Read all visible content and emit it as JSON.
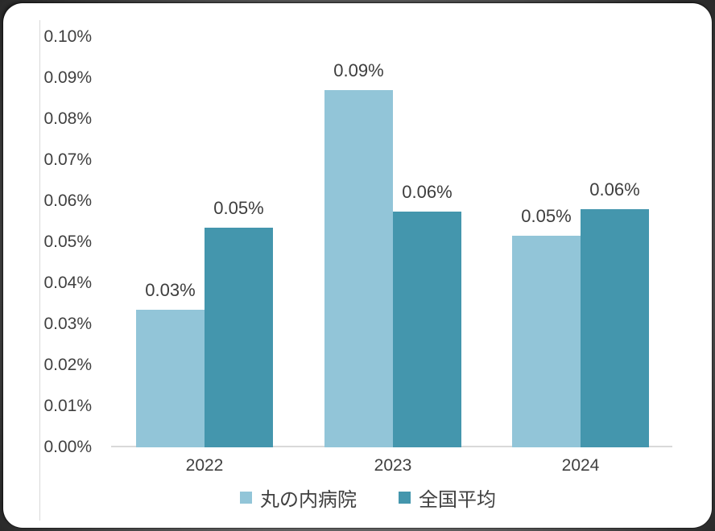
{
  "chart_data": {
    "type": "bar",
    "title": "",
    "xlabel": "",
    "ylabel": "",
    "categories": [
      "2022",
      "2023",
      "2024"
    ],
    "series": [
      {
        "key": "marunouchi-hospital",
        "name": "丸の内病院",
        "color": "#92c5d8",
        "values": [
          0.0335,
          0.087,
          0.0515
        ],
        "labels": [
          "0.03%",
          "0.09%",
          "0.05%"
        ]
      },
      {
        "key": "national-average",
        "name": "全国平均",
        "color": "#4496ad",
        "values": [
          0.0535,
          0.0575,
          0.058
        ],
        "labels": [
          "0.05%",
          "0.06%",
          "0.06%"
        ]
      }
    ],
    "ylim": [
      0,
      0.1
    ],
    "y_ticks": [
      "0.10%",
      "0.09%",
      "0.08%",
      "0.07%",
      "0.06%",
      "0.05%",
      "0.04%",
      "0.03%",
      "0.02%",
      "0.01%",
      "0.00%"
    ],
    "grid": false,
    "legend_position": "bottom"
  },
  "colors": {
    "axis_line": "#d9d9d9",
    "tick_text": "#404040",
    "data_label_text": "#3d3d3d",
    "card_background": "#ffffff",
    "frame_background": "#5e5e5e"
  }
}
